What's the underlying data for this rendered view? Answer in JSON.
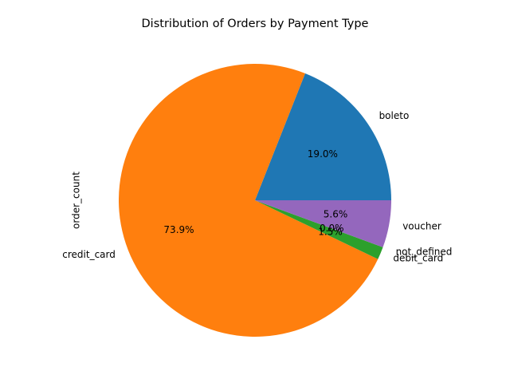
{
  "chart_data": {
    "type": "pie",
    "title": "Distribution of Orders by Payment Type",
    "ylabel": "order_count",
    "categories": [
      "boleto",
      "credit_card",
      "debit_card",
      "not_defined",
      "voucher"
    ],
    "values": [
      19.0,
      73.9,
      1.5,
      0.0,
      5.6
    ],
    "percent_labels": [
      "19.0%",
      "73.9%",
      "1.5%",
      "0.0%",
      "5.6%"
    ],
    "colors": [
      "#1f77b4",
      "#ff7f0e",
      "#2ca02c",
      "#d62728",
      "#9467bd"
    ],
    "start_angle": 0,
    "direction": "counterclockwise"
  }
}
